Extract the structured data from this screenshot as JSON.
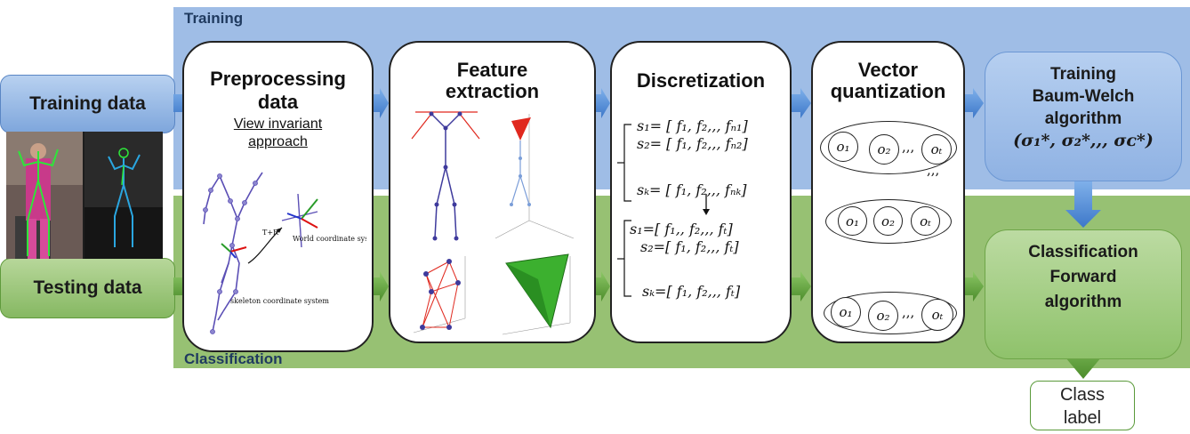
{
  "bands": {
    "training": "Training",
    "classification": "Classification"
  },
  "inputs": {
    "training": "Training data",
    "testing": "Testing data"
  },
  "stages": {
    "preprocessing": {
      "title_line1": "Preprocessing",
      "title_line2": "data",
      "subtitle_line1": "View invariant",
      "subtitle_line2": "approach",
      "label_world": "World coordinate system",
      "label_skeleton": "skeleton coordinate system",
      "label_transform": "T+R"
    },
    "feature": {
      "title_line1": "Feature",
      "title_line2": "extraction"
    },
    "discretization": {
      "title": "Discretization"
    },
    "vq": {
      "title_line1": "Vector",
      "title_line2": "quantization"
    }
  },
  "discretization_equations": {
    "top": [
      "s₁= [ f₁,  f₂,,,  fₙ₁]",
      "s₂= [ f₁,  f₂,,,  fₙ₂]",
      "sₖ= [ f₁,  f₂,,,  fₙₖ]"
    ],
    "bottom": [
      "s₁=[ f₁,,  f₂,,,  fₜ]",
      "s₂=[ f₁,  f₂,,,  fₜ]",
      "sₖ=[ f₁,  f₂,,,  fₜ]"
    ]
  },
  "vq_symbols": {
    "o1": "o₁",
    "o2": "o₂",
    "oT": "oₜ",
    "sep": ",,,"
  },
  "outputs": {
    "training": {
      "line1": "Training",
      "line2": "Baum-Welch",
      "line3": "algorithm",
      "line4": "(σ₁*, σ₂*,,, σᴄ*)"
    },
    "classification": {
      "line1": "Classification",
      "line2": "Forward",
      "line3": "algorithm"
    }
  },
  "class_label": {
    "line1": "Class",
    "line2": "label"
  },
  "colors": {
    "training_band": "#9fbde6",
    "classification_band": "#97c173",
    "arrow_blue": "#5b8fd6",
    "arrow_green": "#6aa843"
  }
}
